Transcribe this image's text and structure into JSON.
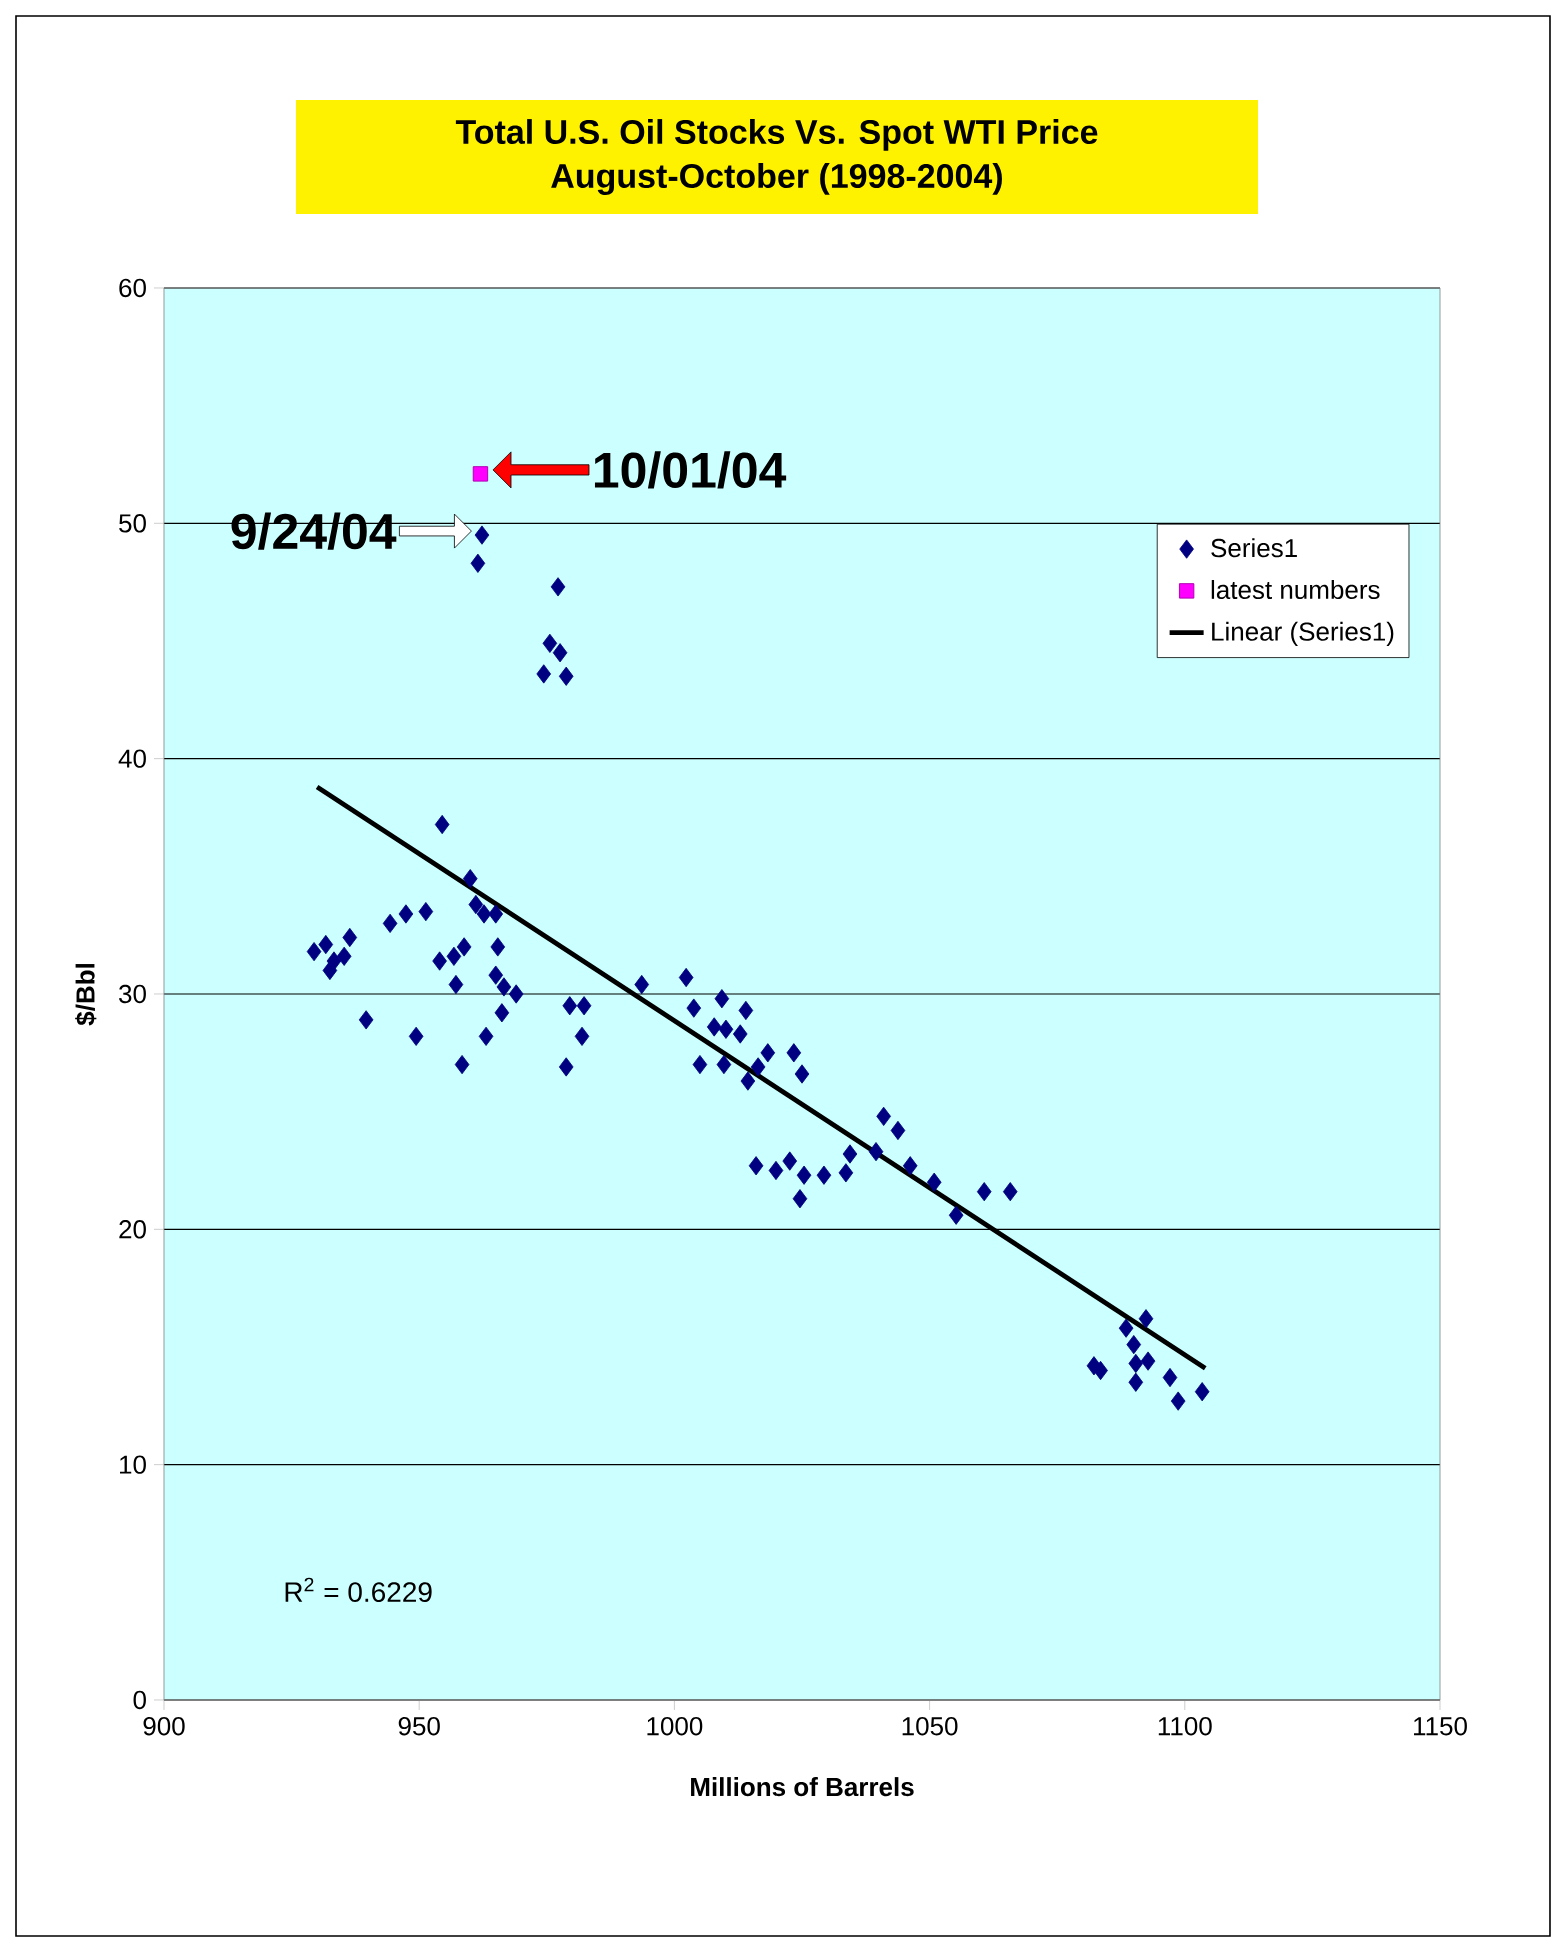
{
  "chart_data": {
    "type": "scatter",
    "title": "Total U.S. Oil Stocks Vs. Spot WTI Price",
    "subtitle": "August-October (1998-2004)",
    "xlabel": "Millions of Barrels",
    "ylabel": "$/Bbl",
    "xlim": [
      900,
      1150
    ],
    "ylim": [
      0,
      60
    ],
    "xticks": [
      900,
      950,
      1000,
      1050,
      1100,
      1150
    ],
    "yticks": [
      0,
      10,
      20,
      30,
      40,
      50,
      60
    ],
    "grid": "y",
    "legend": "top right",
    "annotations": [
      {
        "text": "9/24/04",
        "x": 962.3,
        "y": 49.5
      },
      {
        "text": "10/01/04",
        "x": 962,
        "y": 52.1
      },
      "R$^{2}$ = 0.6229"
    ],
    "series": [
      {
        "name": "Series1",
        "color": "#000080",
        "marker": "diamond",
        "x": [
          962.3,
          961.5,
          977.2,
          975.6,
          977.6,
          974.4,
          978.8,
          954.5,
          960,
          961.1,
          962.7,
          965,
          951.3,
          947.4,
          944.3,
          936.4,
          931.7,
          929.4,
          933.3,
          932.5,
          935.3,
          958.8,
          965.4,
          954,
          956.8,
          957.2,
          965,
          966.6,
          969,
          966.2,
          939.6,
          949.4,
          963.1,
          958.4,
          979.5,
          982.3,
          981.9,
          978.8,
          993.6,
          1002.3,
          1003.8,
          1009.3,
          1014,
          1007.8,
          1010.1,
          1012.9,
          1005,
          1009.7,
          1014.4,
          1016.4,
          1018.3,
          1023.4,
          1025,
          1016,
          1019.9,
          1022.6,
          1025.4,
          1024.6,
          1029.3,
          1033.6,
          1034.4,
          1039.5,
          1041,
          1043.8,
          1046.2,
          1050.9,
          1055.2,
          1060.7,
          1065.8,
          1092.4,
          1088.5,
          1090,
          1082.2,
          1083.5,
          1090.4,
          1092.8,
          1090.4,
          1097.1,
          1098.7,
          1103.4
        ],
        "values": [
          49.5,
          48.3,
          47.3,
          44.9,
          44.5,
          43.6,
          43.5,
          37.2,
          34.9,
          33.8,
          33.4,
          33.4,
          33.5,
          33.4,
          33.0,
          32.4,
          32.1,
          31.8,
          31.4,
          31.0,
          31.6,
          32.0,
          32.0,
          31.4,
          31.6,
          30.4,
          30.8,
          30.3,
          30.0,
          29.2,
          28.9,
          28.2,
          28.2,
          27.0,
          29.5,
          29.5,
          28.2,
          26.9,
          30.4,
          30.7,
          29.4,
          29.8,
          29.3,
          28.6,
          28.5,
          28.3,
          27.0,
          27.0,
          26.3,
          26.9,
          27.5,
          27.5,
          26.6,
          22.7,
          22.5,
          22.9,
          22.3,
          21.3,
          22.3,
          22.4,
          23.2,
          23.3,
          24.8,
          24.2,
          22.7,
          22.0,
          20.6,
          21.6,
          21.6,
          16.2,
          15.8,
          15.1,
          14.2,
          14.0,
          14.3,
          14.4,
          13.5,
          13.7,
          12.7,
          13.1
        ]
      },
      {
        "name": "latest numbers",
        "color": "#ff00ff",
        "marker": "square",
        "x": [
          962
        ],
        "values": [
          52.1
        ]
      },
      {
        "name": "Linear (Series1)",
        "type": "line",
        "color": "#000000",
        "marker": "none",
        "x": [
          930,
          1104
        ],
        "values": [
          38.8,
          14.1
        ]
      }
    ]
  }
}
